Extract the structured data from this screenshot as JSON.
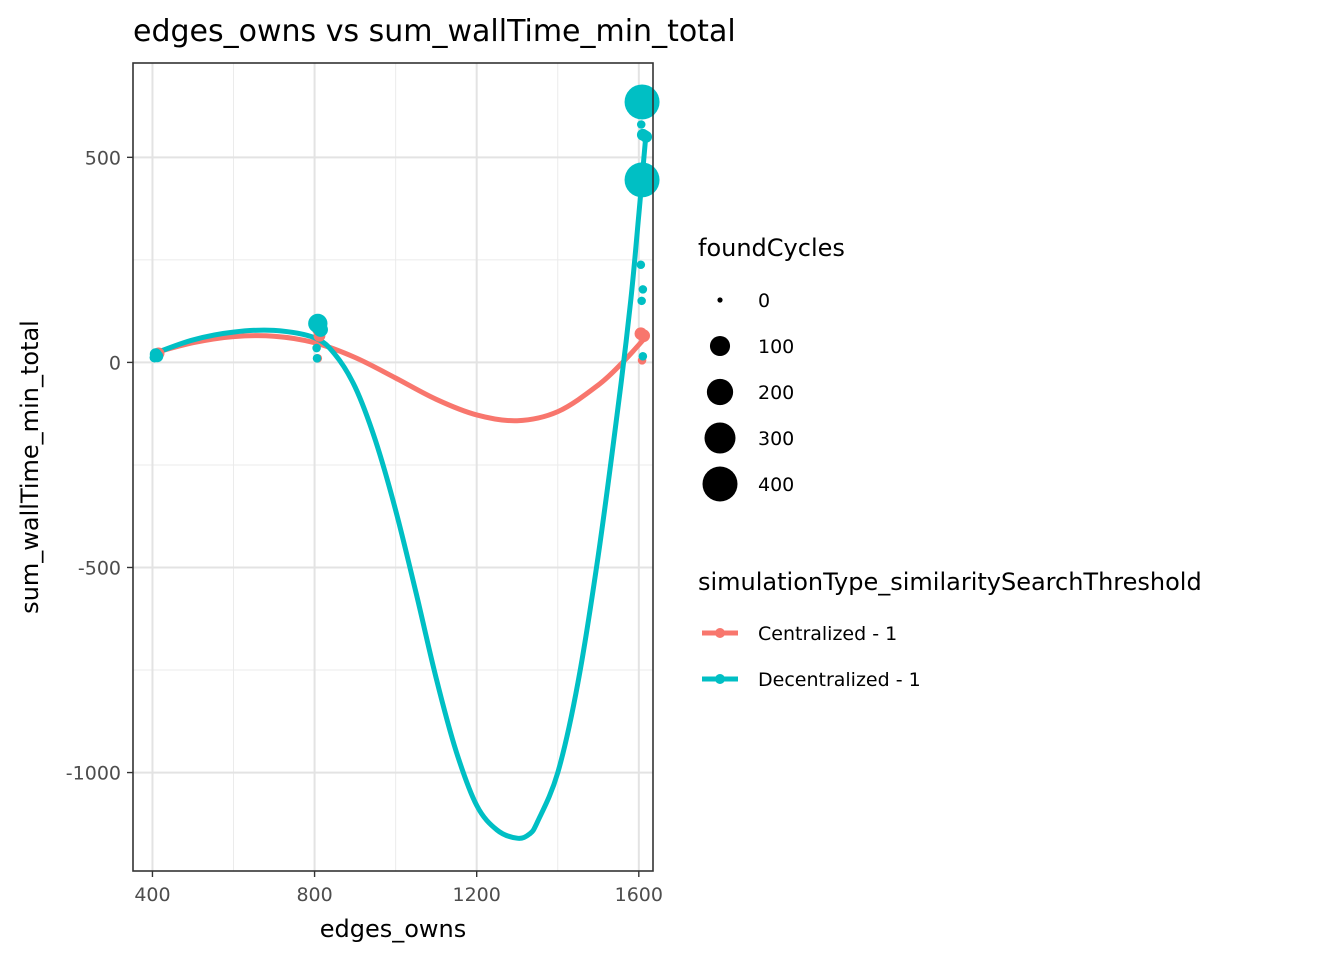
{
  "chart_data": {
    "type": "scatter",
    "title": "edges_owns  vs  sum_wallTime_min_total",
    "xlabel": "edges_owns",
    "ylabel": "sum_wallTime_min_total",
    "xlim": [
      352,
      1635
    ],
    "ylim": [
      -1240,
      730
    ],
    "xticks": [
      400,
      800,
      1200,
      1600
    ],
    "xtick_labels": [
      "400",
      "800",
      "1200",
      "1600"
    ],
    "yticks": [
      500,
      0,
      -500,
      -1000
    ],
    "ytick_labels": [
      "500",
      "0",
      "-500",
      "-1000"
    ],
    "grid": true,
    "legend_placement": "right",
    "size_legend": {
      "title": "foundCycles",
      "entries": [
        {
          "label": "0",
          "value": 0
        },
        {
          "label": "100",
          "value": 100
        },
        {
          "label": "200",
          "value": 200
        },
        {
          "label": "300",
          "value": 300
        },
        {
          "label": "400",
          "value": 400
        }
      ]
    },
    "color_legend": {
      "title": "simulationType_similaritySearchThreshold"
    },
    "series": [
      {
        "name": "Centralized - 1",
        "color": "#F8766D",
        "points": [
          {
            "x": 410,
            "y": 20,
            "size": 20
          },
          {
            "x": 415,
            "y": 22,
            "size": 20
          },
          {
            "x": 810,
            "y": 80,
            "size": 25
          },
          {
            "x": 812,
            "y": 65,
            "size": 20
          },
          {
            "x": 808,
            "y": 10,
            "size": 5
          },
          {
            "x": 1605,
            "y": 70,
            "size": 25
          },
          {
            "x": 1612,
            "y": 65,
            "size": 25
          },
          {
            "x": 1608,
            "y": 5,
            "size": 5
          }
        ],
        "smooth": [
          {
            "x": 400,
            "y": 22
          },
          {
            "x": 500,
            "y": 48
          },
          {
            "x": 600,
            "y": 63
          },
          {
            "x": 700,
            "y": 64
          },
          {
            "x": 800,
            "y": 48
          },
          {
            "x": 900,
            "y": 12
          },
          {
            "x": 1000,
            "y": -38
          },
          {
            "x": 1100,
            "y": -90
          },
          {
            "x": 1200,
            "y": -128
          },
          {
            "x": 1300,
            "y": -142
          },
          {
            "x": 1400,
            "y": -120
          },
          {
            "x": 1500,
            "y": -55
          },
          {
            "x": 1560,
            "y": 0
          },
          {
            "x": 1620,
            "y": 65
          }
        ]
      },
      {
        "name": "Decentralized - 1",
        "color": "#00BFC4",
        "points": [
          {
            "x": 408,
            "y": 20,
            "size": 20
          },
          {
            "x": 412,
            "y": 15,
            "size": 20
          },
          {
            "x": 405,
            "y": 12,
            "size": 10
          },
          {
            "x": 808,
            "y": 95,
            "size": 90
          },
          {
            "x": 815,
            "y": 80,
            "size": 40
          },
          {
            "x": 805,
            "y": 35,
            "size": 5
          },
          {
            "x": 806,
            "y": 10,
            "size": 5
          },
          {
            "x": 1608,
            "y": 635,
            "size": 400
          },
          {
            "x": 1608,
            "y": 445,
            "size": 400
          },
          {
            "x": 1606,
            "y": 580,
            "size": 5
          },
          {
            "x": 1610,
            "y": 555,
            "size": 20
          },
          {
            "x": 1618,
            "y": 550,
            "size": 20
          },
          {
            "x": 1605,
            "y": 238,
            "size": 5
          },
          {
            "x": 1607,
            "y": 150,
            "size": 5
          },
          {
            "x": 1610,
            "y": 178,
            "size": 5
          },
          {
            "x": 1610,
            "y": 15,
            "size": 5
          }
        ],
        "smooth": [
          {
            "x": 400,
            "y": 20
          },
          {
            "x": 500,
            "y": 55
          },
          {
            "x": 600,
            "y": 74
          },
          {
            "x": 700,
            "y": 78
          },
          {
            "x": 800,
            "y": 60
          },
          {
            "x": 850,
            "y": 20
          },
          {
            "x": 900,
            "y": -60
          },
          {
            "x": 950,
            "y": -190
          },
          {
            "x": 1000,
            "y": -360
          },
          {
            "x": 1050,
            "y": -560
          },
          {
            "x": 1100,
            "y": -770
          },
          {
            "x": 1150,
            "y": -950
          },
          {
            "x": 1200,
            "y": -1080
          },
          {
            "x": 1250,
            "y": -1140
          },
          {
            "x": 1300,
            "y": -1160
          },
          {
            "x": 1330,
            "y": -1150
          },
          {
            "x": 1350,
            "y": -1120
          },
          {
            "x": 1400,
            "y": -1000
          },
          {
            "x": 1450,
            "y": -780
          },
          {
            "x": 1500,
            "y": -470
          },
          {
            "x": 1550,
            "y": -100
          },
          {
            "x": 1580,
            "y": 150
          },
          {
            "x": 1600,
            "y": 360
          },
          {
            "x": 1618,
            "y": 560
          }
        ]
      }
    ]
  }
}
